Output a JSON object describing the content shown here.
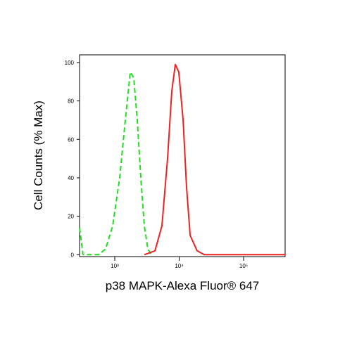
{
  "chart_data": {
    "type": "line",
    "ylabel": "Cell Counts (% Max)",
    "xlabel": "p38 MAPK-Alexa Fluor® 647",
    "xscale": "log",
    "xlim": [
      284,
      441000
    ],
    "ylim": [
      -1,
      104
    ],
    "xticks": [
      {
        "value": 1000,
        "label": "10³"
      },
      {
        "value": 10000,
        "label": "10⁴"
      },
      {
        "value": 100000,
        "label": "10⁵"
      }
    ],
    "yticks": [
      0,
      20,
      40,
      60,
      80,
      100
    ],
    "series": [
      {
        "color": "#22dd22",
        "dash": true,
        "x": [
          284,
          322,
          561,
          721,
          928,
          1193,
          1459,
          1739,
          1973,
          2238,
          2536,
          2876,
          3263,
          3700
        ],
        "values": [
          14,
          0,
          0,
          3,
          15,
          40,
          70,
          95,
          92,
          70,
          40,
          15,
          3,
          0
        ]
      },
      {
        "color": "#ee2222",
        "dash": false,
        "x": [
          2876,
          4200,
          5400,
          6600,
          7680,
          8710,
          9880,
          11500,
          13000,
          14800,
          19000,
          24400,
          441000
        ],
        "values": [
          0,
          2,
          15,
          50,
          85,
          99,
          95,
          70,
          35,
          10,
          2,
          0,
          0
        ]
      }
    ]
  }
}
